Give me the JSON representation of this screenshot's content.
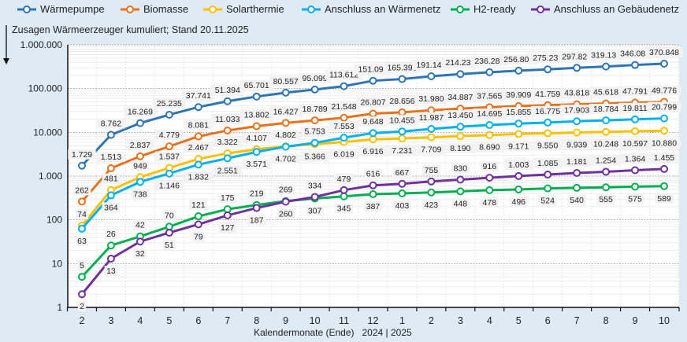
{
  "chart_data": {
    "type": "line",
    "title": "Zusagen Wärmeerzeuger kumuliert; Stand  20.11.2025",
    "xlabel": "Kalendermonate (Ende)",
    "xlabel_year": "2024 | 2025",
    "ylabel": "",
    "yscale": "log",
    "ylim": [
      1,
      1000000
    ],
    "yticks": [
      1,
      10,
      100,
      1000,
      10000,
      100000,
      1000000
    ],
    "ytick_labels": [
      "1",
      "10",
      "100",
      "1.000",
      "10.000",
      "100.000",
      "1.000.000"
    ],
    "grid": true,
    "legend_position": "top",
    "categories": [
      "2",
      "3",
      "4",
      "5",
      "6",
      "7",
      "8",
      "9",
      "10",
      "11",
      "12",
      "1",
      "2",
      "3",
      "4",
      "5",
      "6",
      "7",
      "8",
      "9",
      "10"
    ],
    "series": [
      {
        "name": "Wärmepumpe",
        "color": "#2e75b6",
        "values": [
          1729,
          8762,
          16269,
          25235,
          37741,
          51394,
          65701,
          80557,
          95099,
          113612,
          151094,
          165393,
          191144,
          214231,
          236283,
          256807,
          275238,
          297823,
          319139,
          346085,
          370848
        ]
      },
      {
        "name": "Biomasse",
        "color": "#e8711c",
        "values": [
          262,
          1513,
          2837,
          4779,
          8081,
          11033,
          13802,
          16427,
          18789,
          21548,
          26807,
          28656,
          31980,
          34887,
          37565,
          39909,
          41759,
          43818,
          45618,
          47791,
          49776
        ]
      },
      {
        "name": "Solarthermie",
        "color": "#ffc000",
        "values": [
          74,
          481,
          949,
          1537,
          2467,
          3322,
          4107,
          4802,
          5366,
          6019,
          6916,
          7231,
          7709,
          8190,
          8690,
          9171,
          9550,
          9939,
          10248,
          10597,
          10880
        ]
      },
      {
        "name": "Anschluss an Wärmenetz",
        "color": "#00b0f0",
        "values": [
          63,
          364,
          738,
          1146,
          1832,
          2551,
          3571,
          4702,
          5753,
          7553,
          9648,
          10455,
          11987,
          13450,
          14695,
          15855,
          16775,
          17903,
          18784,
          19811,
          20799
        ]
      },
      {
        "name": "H2-ready",
        "color": "#00b050",
        "values": [
          5,
          26,
          42,
          70,
          121,
          175,
          219,
          269,
          307,
          345,
          387,
          403,
          423,
          448,
          478,
          496,
          524,
          540,
          555,
          575,
          589
        ]
      },
      {
        "name": "Anschluss an Gebäudenetz",
        "color": "#7030a0",
        "values": [
          2,
          13,
          32,
          51,
          79,
          127,
          187,
          260,
          334,
          479,
          616,
          667,
          755,
          830,
          916,
          1003,
          1085,
          1181,
          1254,
          1364,
          1455
        ]
      }
    ]
  }
}
